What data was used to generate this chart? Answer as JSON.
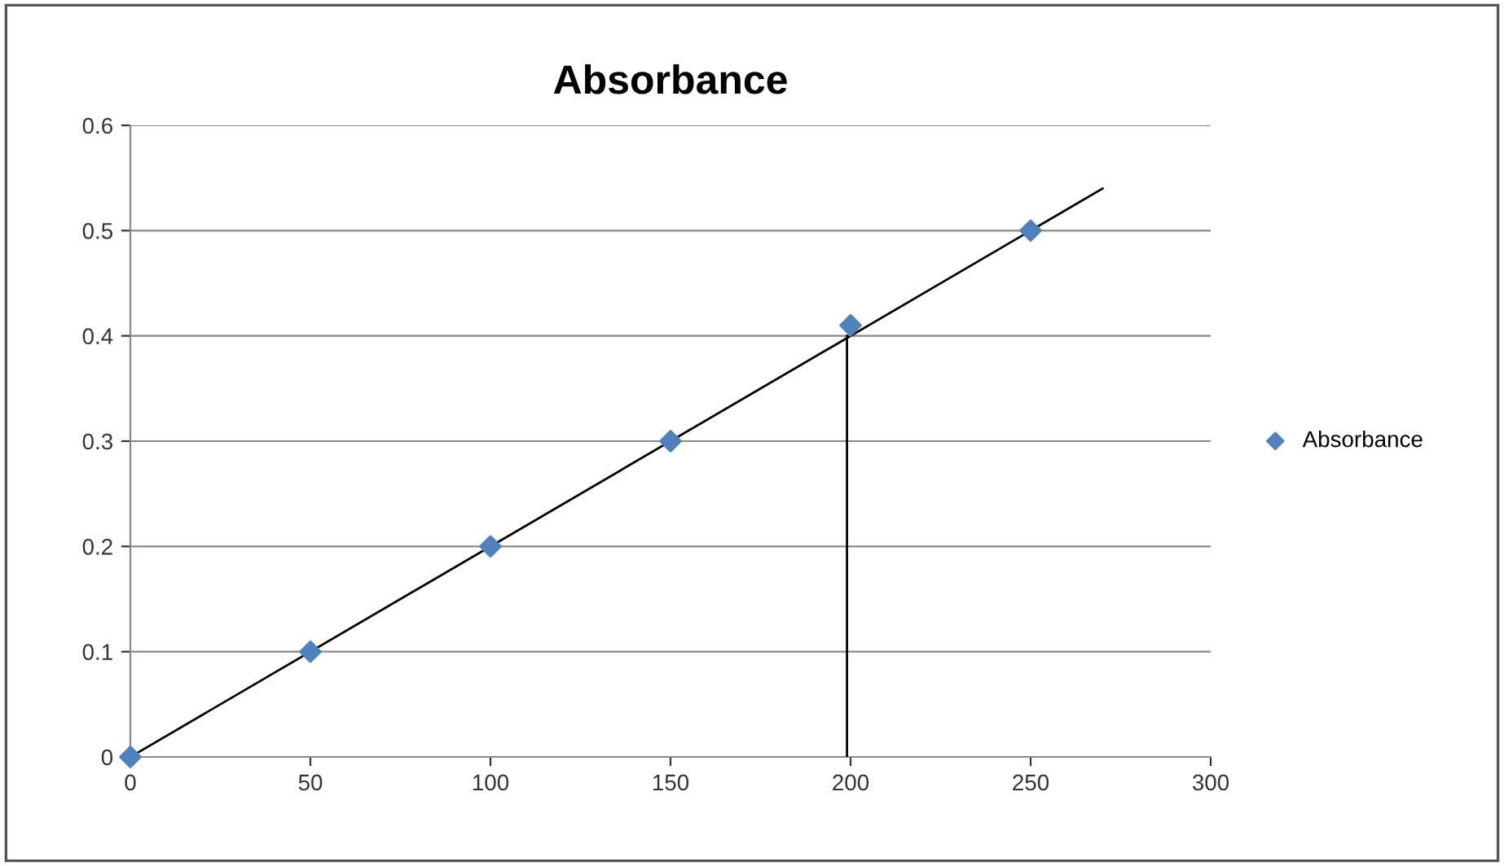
{
  "chart_data": {
    "type": "scatter",
    "title": "Absorbance",
    "series": [
      {
        "name": "Absorbance",
        "color": "#4f81bd",
        "marker": "diamond",
        "x": [
          0,
          50,
          100,
          150,
          200,
          250
        ],
        "values": [
          0,
          0.1,
          0.2,
          0.3,
          0.41,
          0.5
        ]
      },
      {
        "type": "line",
        "color": "#000000",
        "marker": "none",
        "x": [
          0,
          270
        ],
        "values": [
          0,
          0.54
        ]
      },
      {
        "type": "line",
        "color": "#000000",
        "marker": "none",
        "x": [
          199,
          199
        ],
        "values": [
          0,
          0.4
        ]
      }
    ],
    "xlim": [
      0,
      300
    ],
    "xticks": [
      0,
      50,
      100,
      150,
      200,
      250,
      300
    ],
    "ylim": [
      0,
      0.6
    ],
    "yticks": [
      0,
      0.1,
      0.2,
      0.3,
      0.4,
      0.5,
      0.6
    ],
    "grid": "y",
    "legend": "right"
  }
}
